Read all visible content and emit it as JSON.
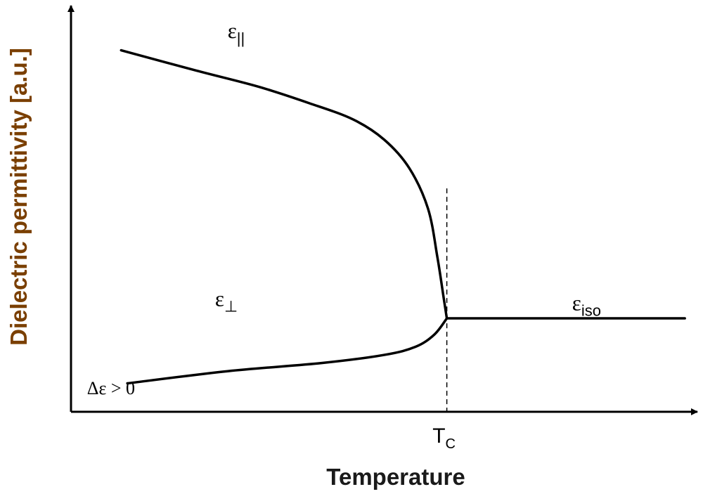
{
  "chart_data": {
    "type": "line",
    "xlabel": "Temperature",
    "ylabel": "Dielectric permittivity [a.u.]",
    "xlim": [
      0,
      1
    ],
    "ylim": [
      0,
      1
    ],
    "x_ticks": [
      {
        "label": "T",
        "sub": "C",
        "x": 0.6
      }
    ],
    "series": [
      {
        "name": "ε",
        "sub": "||",
        "label_at": [
          0.25,
          0.92
        ],
        "x": [
          0.08,
          0.2,
          0.3,
          0.38,
          0.45,
          0.5,
          0.54,
          0.57,
          0.585,
          0.595,
          0.6
        ],
        "y": [
          0.89,
          0.84,
          0.8,
          0.76,
          0.72,
          0.67,
          0.6,
          0.5,
          0.38,
          0.28,
          0.23
        ]
      },
      {
        "name": "ε",
        "sub": "⊥",
        "label_at": [
          0.23,
          0.26
        ],
        "x": [
          0.09,
          0.25,
          0.4,
          0.5,
          0.55,
          0.58,
          0.6
        ],
        "y": [
          0.07,
          0.1,
          0.12,
          0.14,
          0.16,
          0.19,
          0.23
        ]
      },
      {
        "name": "ε",
        "sub": "iso",
        "label_at": [
          0.8,
          0.25
        ],
        "x": [
          0.6,
          0.98
        ],
        "y": [
          0.23,
          0.23
        ]
      }
    ],
    "annotations": [
      {
        "text": "Δε > 0",
        "at": [
          0.03,
          0.05
        ]
      }
    ],
    "vlines": [
      {
        "x": 0.6,
        "style": "dashed",
        "y_top": 0.55
      }
    ],
    "grid": false,
    "legend": "none"
  }
}
